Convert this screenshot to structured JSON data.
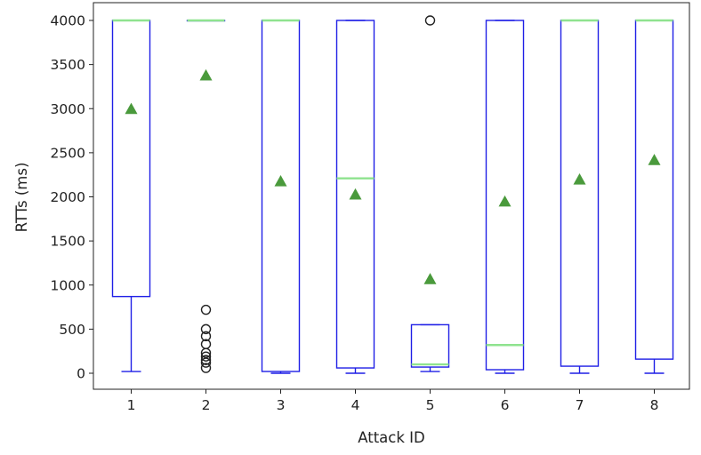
{
  "chart_data": {
    "type": "box",
    "xlabel": "Attack ID",
    "ylabel": "RTTs (ms)",
    "ylim": [
      -200,
      4100
    ],
    "yticks": [
      0,
      500,
      1000,
      1500,
      2000,
      2500,
      3000,
      3500,
      4000
    ],
    "grid": false,
    "colors": {
      "box": "#1f1fe6",
      "median": "#8fe38f",
      "mean": "#4a9a3c",
      "flier": "#222222",
      "frame": "#222222"
    },
    "categories": [
      "1",
      "2",
      "3",
      "4",
      "5",
      "6",
      "7",
      "8"
    ],
    "boxes": [
      {
        "id": "1",
        "whisker_low": 20,
        "q1": 870,
        "median": 4000,
        "q3": 4000,
        "whisker_high": 4000,
        "mean": 3000,
        "fliers": []
      },
      {
        "id": "2",
        "whisker_low": 4000,
        "q1": 4000,
        "median": 4000,
        "q3": 4000,
        "whisker_high": 4000,
        "mean": 3380,
        "fliers": [
          720,
          500,
          420,
          330,
          230,
          190,
          150,
          120,
          60
        ]
      },
      {
        "id": "3",
        "whisker_low": 0,
        "q1": 20,
        "median": 4000,
        "q3": 4000,
        "whisker_high": 4000,
        "mean": 2180,
        "fliers": []
      },
      {
        "id": "4",
        "whisker_low": 0,
        "q1": 60,
        "median": 2210,
        "q3": 4000,
        "whisker_high": 4000,
        "mean": 2030,
        "fliers": []
      },
      {
        "id": "5",
        "whisker_low": 20,
        "q1": 70,
        "median": 100,
        "q3": 550,
        "whisker_high": 550,
        "mean": 1070,
        "fliers": [
          4000
        ]
      },
      {
        "id": "6",
        "whisker_low": 0,
        "q1": 40,
        "median": 320,
        "q3": 4000,
        "whisker_high": 4000,
        "mean": 1950,
        "fliers": []
      },
      {
        "id": "7",
        "whisker_low": 0,
        "q1": 80,
        "median": 4000,
        "q3": 4000,
        "whisker_high": 4000,
        "mean": 2200,
        "fliers": []
      },
      {
        "id": "8",
        "whisker_low": 0,
        "q1": 160,
        "median": 4000,
        "q3": 4000,
        "whisker_high": 4000,
        "mean": 2420,
        "fliers": []
      }
    ]
  }
}
